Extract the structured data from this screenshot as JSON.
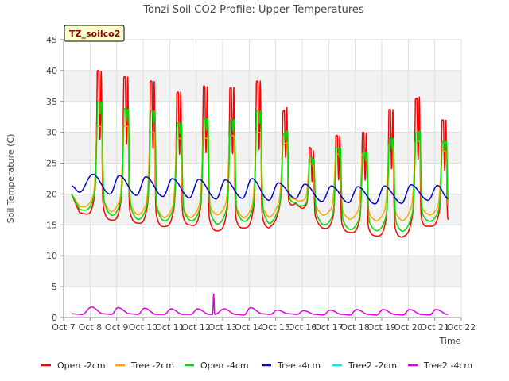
{
  "chart_data": {
    "type": "line",
    "title": "Tonzi Soil CO2 Profile: Upper Temperatures",
    "badge": "TZ_soilco2",
    "xlabel": "Time",
    "ylabel": "Soil Temperature (C)",
    "ylim": [
      0,
      45
    ],
    "yticks": [
      0,
      5,
      10,
      15,
      20,
      25,
      30,
      35,
      40,
      45
    ],
    "xlim": [
      7,
      22
    ],
    "xticks": [
      {
        "value": 7,
        "label": "Oct 7"
      },
      {
        "value": 8,
        "label": "Oct 8"
      },
      {
        "value": 9,
        "label": "Oct 9"
      },
      {
        "value": 10,
        "label": "Oct 10"
      },
      {
        "value": 11,
        "label": "Oct 11"
      },
      {
        "value": 12,
        "label": "Oct 12"
      },
      {
        "value": 13,
        "label": "Oct 13"
      },
      {
        "value": 14,
        "label": "Oct 14"
      },
      {
        "value": 15,
        "label": "Oct 15"
      },
      {
        "value": 16,
        "label": "Oct 16"
      },
      {
        "value": 17,
        "label": "Oct 17"
      },
      {
        "value": 18,
        "label": "Oct 18"
      },
      {
        "value": 19,
        "label": "Oct 19"
      },
      {
        "value": 20,
        "label": "Oct 20"
      },
      {
        "value": 21,
        "label": "Oct 21"
      },
      {
        "value": 22,
        "label": "Oct 22"
      }
    ],
    "grid": true,
    "legend_position": "bottom",
    "x_start": 7.3,
    "x_end": 21.5,
    "series": [
      {
        "name": "Open -2cm",
        "color": "#ff0000",
        "peak_offset": 0.3,
        "peak_width": 0.06,
        "secondary": [
          0.42,
          0.85
        ],
        "min_t": [
          7.3,
          7.6,
          8.75,
          9.75,
          10.75,
          11.75,
          12.75,
          13.75,
          14.75,
          15.75,
          16.75,
          17.75,
          18.75,
          19.75,
          20.75,
          21.5
        ],
        "min_v": [
          20.0,
          17.0,
          15.8,
          15.3,
          14.7,
          15.0,
          14.0,
          14.5,
          14.5,
          18.5,
          14.5,
          13.8,
          13.2,
          13.0,
          14.8,
          14.5
        ],
        "peak_v": [
          40.0,
          39.0,
          38.3,
          36.5,
          37.5,
          37.2,
          38.3,
          33.5,
          27.5,
          29.5,
          30.0,
          33.7,
          35.5,
          32.0
        ]
      },
      {
        "name": "Tree -2cm",
        "color": "#ffa500",
        "peak_offset": 0.3,
        "peak_width": 0.09,
        "secondary": [
          0.42,
          0.75
        ],
        "min_t": [
          7.3,
          7.6,
          8.75,
          9.75,
          10.75,
          11.75,
          12.75,
          13.75,
          14.75,
          15.75,
          16.75,
          17.75,
          18.75,
          19.75,
          20.75,
          21.5
        ],
        "min_v": [
          20.0,
          18.0,
          17.0,
          16.5,
          16.0,
          16.0,
          16.5,
          16.0,
          16.0,
          19.0,
          16.5,
          15.8,
          15.5,
          15.5,
          16.5,
          16.0
        ],
        "peak_v": [
          31.0,
          31.0,
          30.0,
          29.0,
          29.0,
          29.5,
          30.0,
          28.0,
          25.0,
          26.5,
          26.5,
          28.0,
          28.5,
          27.0
        ]
      },
      {
        "name": "Open -4cm",
        "color": "#00dd00",
        "peak_offset": 0.32,
        "peak_width": 0.08,
        "secondary": [
          0.44,
          0.8
        ],
        "min_t": [
          7.3,
          7.6,
          8.75,
          9.75,
          10.75,
          11.75,
          12.75,
          13.75,
          14.75,
          15.75,
          16.75,
          17.75,
          18.75,
          19.75,
          20.75,
          21.5
        ],
        "min_v": [
          20.0,
          17.5,
          16.5,
          15.8,
          15.5,
          15.6,
          15.0,
          15.5,
          15.0,
          18.5,
          15.0,
          14.2,
          14.0,
          13.8,
          15.5,
          15.5
        ],
        "peak_v": [
          35.0,
          33.8,
          33.5,
          31.5,
          32.2,
          32.0,
          33.5,
          29.8,
          26.0,
          27.5,
          26.8,
          29.0,
          30.0,
          28.5
        ]
      },
      {
        "name": "Tree -4cm",
        "color": "#0000cc",
        "type": "smooth",
        "points": [
          [
            7.3,
            21.3
          ],
          [
            7.6,
            20.3
          ],
          [
            8.1,
            23.2
          ],
          [
            8.75,
            20.0
          ],
          [
            9.1,
            23.0
          ],
          [
            9.75,
            19.8
          ],
          [
            10.1,
            22.8
          ],
          [
            10.75,
            19.6
          ],
          [
            11.1,
            22.5
          ],
          [
            11.75,
            19.4
          ],
          [
            12.1,
            22.4
          ],
          [
            12.75,
            19.2
          ],
          [
            13.1,
            22.3
          ],
          [
            13.75,
            19.3
          ],
          [
            14.1,
            22.5
          ],
          [
            14.75,
            19.0
          ],
          [
            15.1,
            21.8
          ],
          [
            15.75,
            19.3
          ],
          [
            16.1,
            21.6
          ],
          [
            16.75,
            18.8
          ],
          [
            17.1,
            21.3
          ],
          [
            17.75,
            18.6
          ],
          [
            18.1,
            21.2
          ],
          [
            18.75,
            18.4
          ],
          [
            19.1,
            21.3
          ],
          [
            19.75,
            18.5
          ],
          [
            20.1,
            21.5
          ],
          [
            20.75,
            19.0
          ],
          [
            21.1,
            21.4
          ],
          [
            21.5,
            19.3
          ]
        ]
      },
      {
        "name": "Tree2 -2cm",
        "color": "#00e5ff",
        "points": []
      },
      {
        "name": "Tree2 -4cm",
        "color": "#e000e0",
        "type": "smooth",
        "points": [
          [
            7.3,
            0.6
          ],
          [
            7.7,
            0.5
          ],
          [
            8.05,
            1.7
          ],
          [
            8.5,
            0.6
          ],
          [
            8.8,
            0.5
          ],
          [
            9.05,
            1.6
          ],
          [
            9.5,
            0.6
          ],
          [
            9.8,
            0.5
          ],
          [
            10.05,
            1.5
          ],
          [
            10.5,
            0.5
          ],
          [
            10.8,
            0.5
          ],
          [
            11.05,
            1.4
          ],
          [
            11.5,
            0.5
          ],
          [
            11.8,
            0.5
          ],
          [
            12.05,
            1.4
          ],
          [
            12.5,
            0.5
          ],
          [
            12.62,
            0.5
          ],
          [
            12.66,
            3.8
          ],
          [
            12.7,
            0.5
          ],
          [
            13.05,
            1.4
          ],
          [
            13.5,
            0.5
          ],
          [
            13.8,
            0.4
          ],
          [
            14.05,
            1.6
          ],
          [
            14.5,
            0.6
          ],
          [
            14.8,
            0.5
          ],
          [
            15.05,
            1.2
          ],
          [
            15.5,
            0.6
          ],
          [
            15.8,
            0.5
          ],
          [
            16.05,
            1.1
          ],
          [
            16.5,
            0.5
          ],
          [
            16.8,
            0.4
          ],
          [
            17.05,
            1.2
          ],
          [
            17.5,
            0.5
          ],
          [
            17.8,
            0.4
          ],
          [
            18.05,
            1.3
          ],
          [
            18.5,
            0.5
          ],
          [
            18.8,
            0.4
          ],
          [
            19.05,
            1.3
          ],
          [
            19.5,
            0.5
          ],
          [
            19.8,
            0.4
          ],
          [
            20.05,
            1.3
          ],
          [
            20.5,
            0.5
          ],
          [
            20.8,
            0.4
          ],
          [
            21.05,
            1.3
          ],
          [
            21.5,
            0.5
          ]
        ]
      }
    ]
  }
}
